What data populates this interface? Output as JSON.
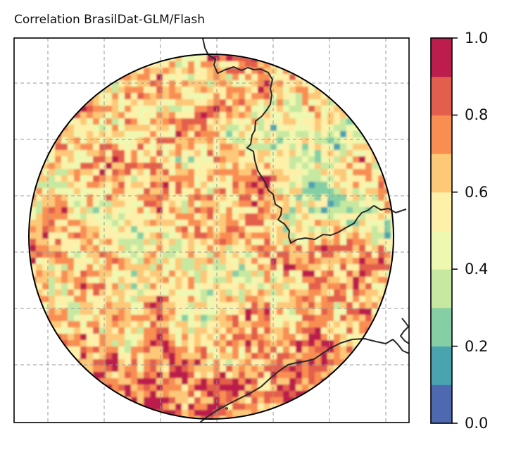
{
  "title": "Correlation BrasilDat-GLM/Flash",
  "colorbar": {
    "ticks": [
      "0.0",
      "0.2",
      "0.4",
      "0.6",
      "0.8",
      "1.0"
    ],
    "tick_values": [
      0.0,
      0.2,
      0.4,
      0.6,
      0.8,
      1.0
    ],
    "range": [
      0.0,
      1.0
    ],
    "levels": [
      0.0,
      0.1,
      0.2,
      0.3,
      0.4,
      0.5,
      0.6,
      0.7,
      0.8,
      0.9,
      1.0
    ],
    "colors": [
      "#4f69b1",
      "#4aa3b1",
      "#86cfa5",
      "#c6e8a0",
      "#eef8b0",
      "#fef0a8",
      "#fdc878",
      "#f98e52",
      "#e35e4c",
      "#bc1d4c"
    ]
  },
  "map": {
    "projection": "orthographic-disk",
    "grid": true,
    "overall_field": "spatially noisy correlation values mostly between 0.5 and 1.0",
    "overlays": [
      "state boundary line",
      "coastline"
    ]
  }
}
